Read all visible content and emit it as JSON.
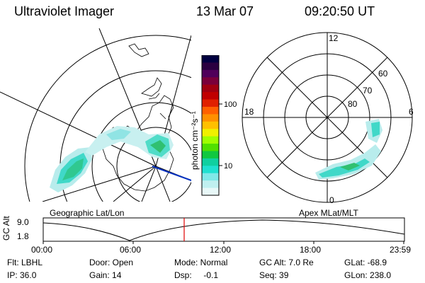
{
  "header": {
    "instrument": "Ultraviolet Imager",
    "date": "13 Mar 07",
    "time": "09:20:50 UT"
  },
  "colorbar": {
    "label": "photon cm⁻²s⁻¹",
    "ticks": [
      "100",
      "10"
    ],
    "colors": [
      "#000040",
      "#2a0040",
      "#50005a",
      "#7a003a",
      "#a00010",
      "#c00000",
      "#e02000",
      "#ff6000",
      "#ff9000",
      "#ffc000",
      "#f0f000",
      "#a0ff00",
      "#50e000",
      "#10c840",
      "#10d0a0",
      "#20e0d0",
      "#80e8e8",
      "#c0f0f0",
      "#e8f8f8"
    ]
  },
  "left_panel": {
    "caption": "Geographic Lat/Lon"
  },
  "right_panel": {
    "caption": "Apex MLat/MLT",
    "mlt_labels": {
      "top": "12",
      "left": "18",
      "right": "6",
      "bottom": "0"
    },
    "lat_labels": [
      "60",
      "70",
      "80"
    ]
  },
  "altitude_plot": {
    "axis_label": "GC Alt",
    "y_ticks": [
      "9.0",
      "1.8"
    ],
    "x_ticks": [
      "00:00",
      "06:00",
      "12:00",
      "18:00",
      "23:59"
    ],
    "cursor_time": "09:20:50"
  },
  "info": {
    "row1": {
      "flt": "Flt: LBHL",
      "door": "Door: Open",
      "mode": "Mode: Normal",
      "gcalt": "GC Alt: 7.0 Re",
      "glat": "GLat: -68.9"
    },
    "row2": {
      "ip": "IP: 36.0",
      "gain": "Gain: 14",
      "dsp": "Dsp:     -0.1",
      "seq": "Seq: 39",
      "glon": "GLon: 238.0"
    }
  }
}
